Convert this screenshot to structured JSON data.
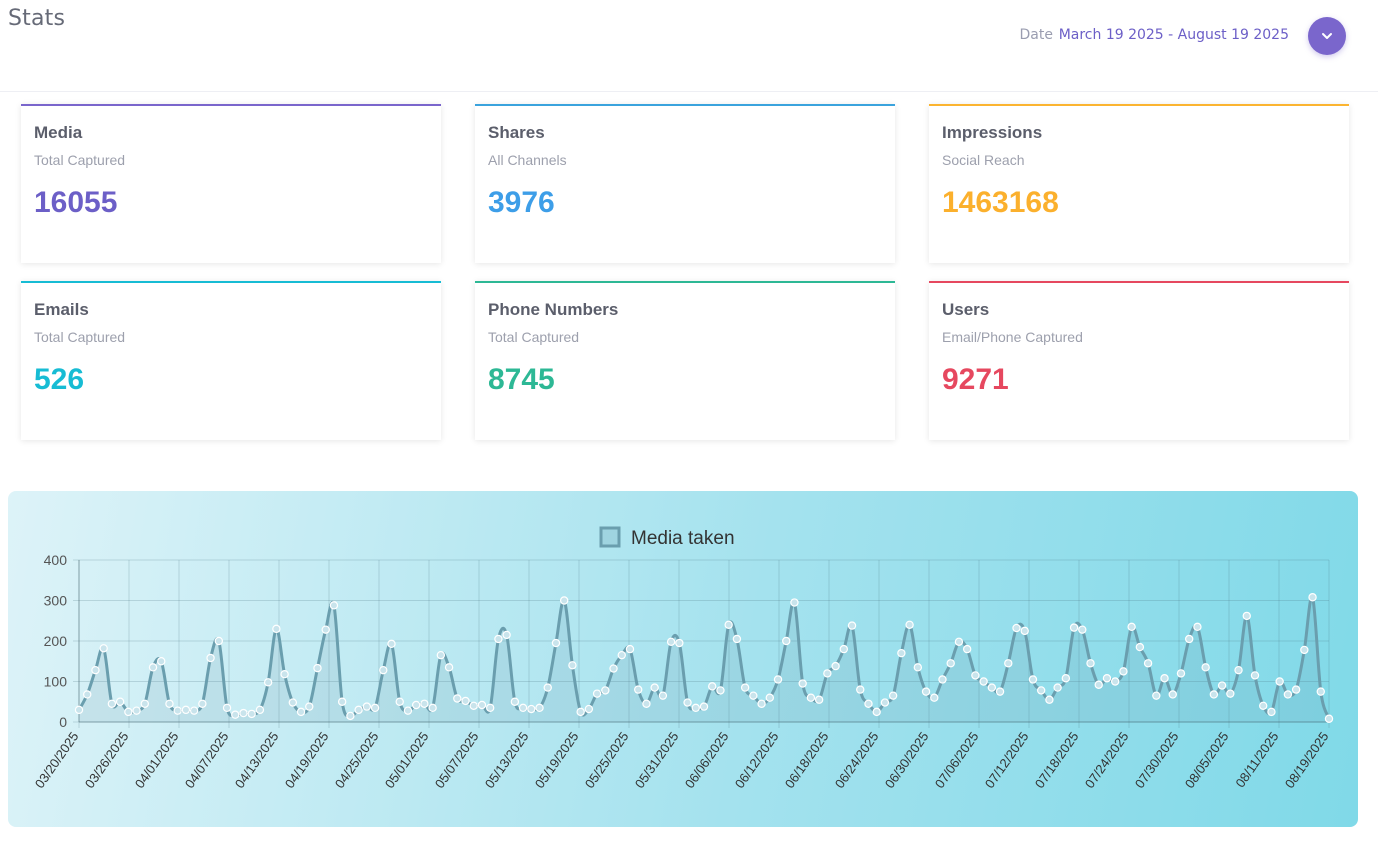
{
  "header": {
    "title": "Stats",
    "date_label": "Date",
    "date_range": "March 19 2025 - August 19 2025",
    "dropdown_icon": "chevron-down-icon"
  },
  "colors": {
    "accent": "#7a66cc",
    "media": "#6c5fc7",
    "shares": "#3d9ee8",
    "impressions": "#fbb02d",
    "emails": "#17bcd4",
    "phones": "#2db895",
    "users": "#e6485f",
    "series_line": "#6a9eae"
  },
  "cards": [
    {
      "title": "Media",
      "subtitle": "Total Captured",
      "value": "16055"
    },
    {
      "title": "Shares",
      "subtitle": "All Channels",
      "value": "3976"
    },
    {
      "title": "Impressions",
      "subtitle": "Social Reach",
      "value": "1463168"
    },
    {
      "title": "Emails",
      "subtitle": "Total Captured",
      "value": "526"
    },
    {
      "title": "Phone Numbers",
      "subtitle": "Total Captured",
      "value": "8745"
    },
    {
      "title": "Users",
      "subtitle": "Email/Phone Captured",
      "value": "9271"
    }
  ],
  "chart_data": {
    "type": "line",
    "legend": "Media taken",
    "ylim": [
      0,
      400
    ],
    "yticks": [
      0,
      100,
      200,
      300,
      400
    ],
    "x_tick_labels": [
      "03/20/2025",
      "03/26/2025",
      "04/01/2025",
      "04/07/2025",
      "04/13/2025",
      "04/19/2025",
      "04/25/2025",
      "05/01/2025",
      "05/07/2025",
      "05/13/2025",
      "05/19/2025",
      "05/25/2025",
      "05/31/2025",
      "06/06/2025",
      "06/12/2025",
      "06/18/2025",
      "06/24/2025",
      "06/30/2025",
      "07/06/2025",
      "07/12/2025",
      "07/18/2025",
      "07/24/2025",
      "07/30/2025",
      "08/05/2025",
      "08/11/2025",
      "08/19/2025"
    ],
    "series": [
      {
        "name": "Media taken",
        "values": [
          30,
          68,
          128,
          182,
          45,
          50,
          25,
          28,
          45,
          135,
          150,
          45,
          28,
          30,
          28,
          45,
          158,
          200,
          35,
          18,
          22,
          20,
          30,
          98,
          230,
          118,
          48,
          25,
          38,
          133,
          228,
          288,
          50,
          15,
          30,
          38,
          35,
          128,
          193,
          50,
          28,
          42,
          45,
          35,
          165,
          135,
          58,
          52,
          40,
          42,
          35,
          205,
          215,
          50,
          35,
          32,
          35,
          85,
          195,
          300,
          140,
          25,
          32,
          70,
          78,
          132,
          165,
          180,
          80,
          45,
          85,
          65,
          198,
          195,
          48,
          35,
          38,
          88,
          78,
          240,
          205,
          85,
          65,
          45,
          60,
          105,
          200,
          295,
          95,
          60,
          55,
          120,
          138,
          180,
          238,
          80,
          45,
          25,
          48,
          65,
          170,
          240,
          135,
          75,
          60,
          105,
          145,
          198,
          180,
          115,
          100,
          85,
          75,
          145,
          232,
          225,
          105,
          78,
          55,
          85,
          108,
          233,
          228,
          145,
          92,
          108,
          100,
          125,
          235,
          185,
          145,
          65,
          108,
          68,
          120,
          205,
          235,
          135,
          68,
          90,
          70,
          128,
          262,
          115,
          40,
          25,
          100,
          68,
          80,
          178,
          308,
          75,
          8
        ]
      }
    ]
  }
}
